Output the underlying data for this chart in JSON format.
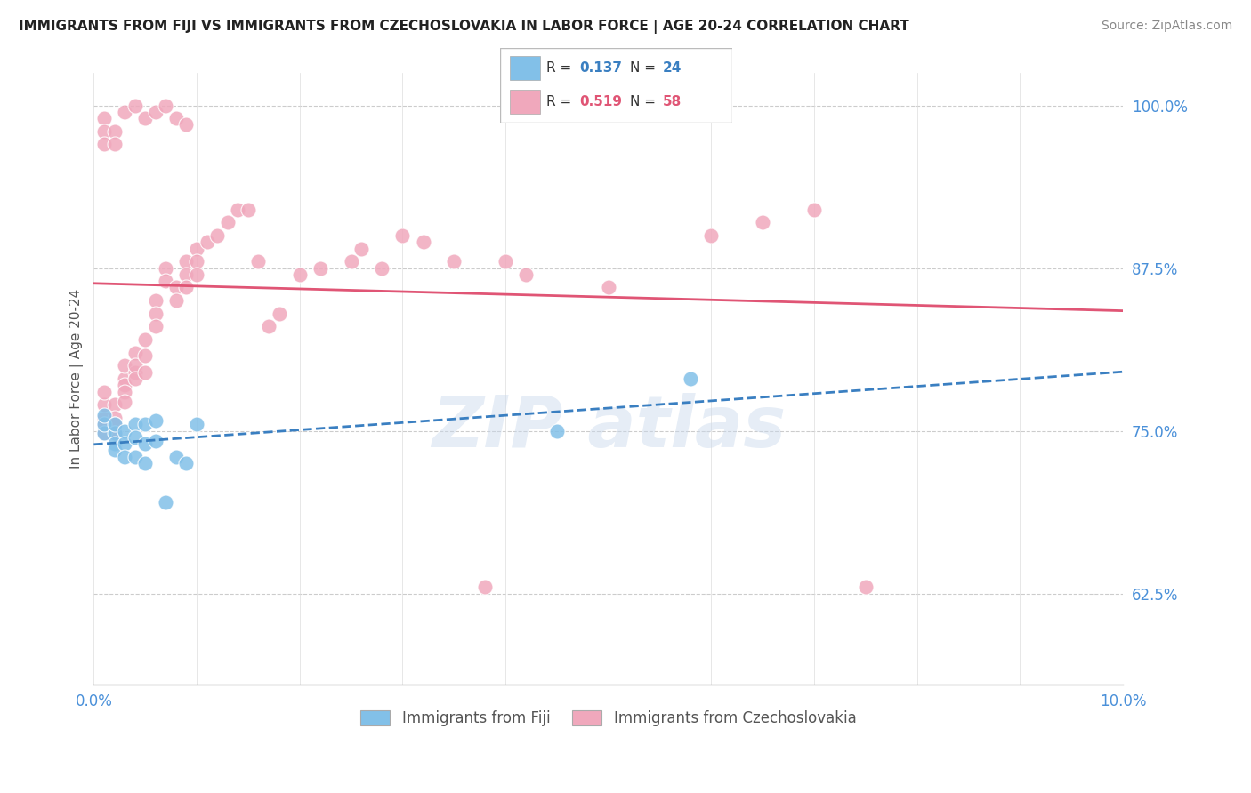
{
  "title": "IMMIGRANTS FROM FIJI VS IMMIGRANTS FROM CZECHOSLOVAKIA IN LABOR FORCE | AGE 20-24 CORRELATION CHART",
  "source": "Source: ZipAtlas.com",
  "ylabel": "In Labor Force | Age 20-24",
  "legend_fiji": "Immigrants from Fiji",
  "legend_czech": "Immigrants from Czechoslovakia",
  "R_fiji": 0.137,
  "N_fiji": 24,
  "R_czech": 0.519,
  "N_czech": 58,
  "xlim": [
    0.0,
    0.1
  ],
  "ylim": [
    0.555,
    1.025
  ],
  "yticks": [
    0.625,
    0.75,
    0.875,
    1.0
  ],
  "ytick_labels": [
    "62.5%",
    "75.0%",
    "87.5%",
    "100.0%"
  ],
  "xtick_labels": [
    "0.0%",
    "",
    "",
    "",
    "",
    "",
    "",
    "",
    "",
    "",
    "10.0%"
  ],
  "color_fiji": "#82c0e8",
  "color_czech": "#f0a8bc",
  "line_color_fiji": "#3a7fc1",
  "line_color_czech": "#e05575",
  "fiji_x": [
    0.001,
    0.001,
    0.001,
    0.002,
    0.002,
    0.002,
    0.002,
    0.003,
    0.003,
    0.003,
    0.004,
    0.004,
    0.004,
    0.005,
    0.005,
    0.005,
    0.006,
    0.006,
    0.007,
    0.008,
    0.009,
    0.01,
    0.045,
    0.058
  ],
  "fiji_y": [
    0.748,
    0.755,
    0.762,
    0.748,
    0.755,
    0.74,
    0.735,
    0.75,
    0.74,
    0.73,
    0.755,
    0.745,
    0.73,
    0.755,
    0.74,
    0.725,
    0.758,
    0.742,
    0.695,
    0.73,
    0.725,
    0.755,
    0.75,
    0.79
  ],
  "czech_x": [
    0.001,
    0.001,
    0.001,
    0.001,
    0.001,
    0.002,
    0.002,
    0.002,
    0.002,
    0.003,
    0.003,
    0.003,
    0.003,
    0.003,
    0.004,
    0.004,
    0.004,
    0.004,
    0.005,
    0.005,
    0.005,
    0.006,
    0.006,
    0.006,
    0.007,
    0.007,
    0.008,
    0.008,
    0.009,
    0.009,
    0.009,
    0.01,
    0.01,
    0.01,
    0.011,
    0.012,
    0.013,
    0.014,
    0.015,
    0.016,
    0.017,
    0.018,
    0.02,
    0.022,
    0.025,
    0.026,
    0.028,
    0.03,
    0.032,
    0.035,
    0.038,
    0.04,
    0.042,
    0.05,
    0.06,
    0.065,
    0.07,
    0.075
  ],
  "czech_y": [
    0.76,
    0.77,
    0.78,
    0.755,
    0.748,
    0.77,
    0.76,
    0.755,
    0.748,
    0.79,
    0.785,
    0.8,
    0.78,
    0.772,
    0.795,
    0.81,
    0.8,
    0.79,
    0.82,
    0.808,
    0.795,
    0.85,
    0.84,
    0.83,
    0.875,
    0.865,
    0.86,
    0.85,
    0.88,
    0.87,
    0.86,
    0.89,
    0.88,
    0.87,
    0.895,
    0.9,
    0.91,
    0.92,
    0.92,
    0.88,
    0.83,
    0.84,
    0.87,
    0.875,
    0.88,
    0.89,
    0.875,
    0.9,
    0.895,
    0.88,
    0.63,
    0.88,
    0.87,
    0.86,
    0.9,
    0.91,
    0.92,
    0.63
  ],
  "top_czech_x": [
    0.001,
    0.001,
    0.001,
    0.002,
    0.002,
    0.003,
    0.004,
    0.005,
    0.006,
    0.007,
    0.008,
    0.009
  ],
  "top_czech_y": [
    0.99,
    0.98,
    0.97,
    0.98,
    0.97,
    0.995,
    1.0,
    0.99,
    0.995,
    1.0,
    0.99,
    0.985
  ]
}
